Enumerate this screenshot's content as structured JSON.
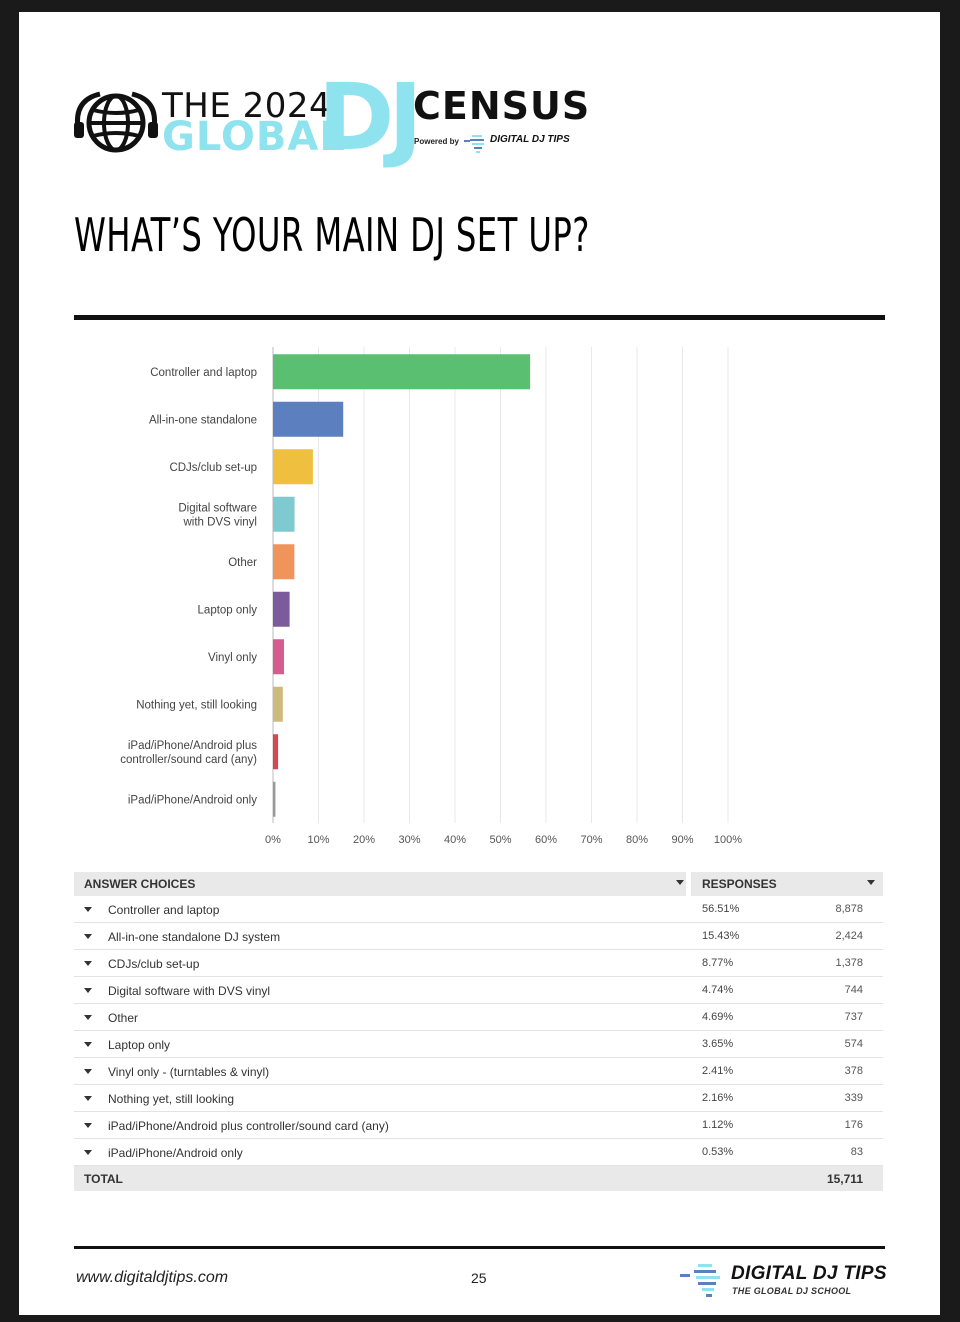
{
  "logo": {
    "the_year": "THE 2024",
    "global": "GLOBAL",
    "dj": "DJ",
    "census": "CENSUS",
    "powered_by": "Powered by",
    "brand_small": "DIGITAL DJ TIPS",
    "accent_color": "#8fe3ee"
  },
  "page_title": "WHAT’S YOUR MAIN DJ SET UP?",
  "chart_data": {
    "type": "bar",
    "orientation": "horizontal",
    "categories": [
      "Controller and laptop",
      "All-in-one standalone",
      "CDJs/club set-up",
      "Digital software with DVS vinyl",
      "Other",
      "Laptop only",
      "Vinyl only",
      "Nothing yet, still looking",
      "iPad/iPhone/Android plus controller/sound card (any)",
      "iPad/iPhone/Android only"
    ],
    "category_lines": [
      [
        "Controller and laptop"
      ],
      [
        "All-in-one standalone"
      ],
      [
        "CDJs/club set-up"
      ],
      [
        "Digital software",
        "with DVS vinyl"
      ],
      [
        "Other"
      ],
      [
        "Laptop only"
      ],
      [
        "Vinyl only"
      ],
      [
        "Nothing yet, still looking"
      ],
      [
        "iPad/iPhone/Android plus",
        "controller/sound card (any)"
      ],
      [
        "iPad/iPhone/Android only"
      ]
    ],
    "values": [
      56.51,
      15.43,
      8.77,
      4.74,
      4.69,
      3.65,
      2.41,
      2.16,
      1.12,
      0.53
    ],
    "colors": [
      "#5bbf72",
      "#5b7fbf",
      "#efc03f",
      "#7ecad0",
      "#ef945a",
      "#7b5b9c",
      "#d55c8c",
      "#cdbb7c",
      "#d8474f",
      "#999999"
    ],
    "xlim": [
      0,
      100
    ],
    "x_ticks": [
      "0%",
      "10%",
      "20%",
      "30%",
      "40%",
      "50%",
      "60%",
      "70%",
      "80%",
      "90%",
      "100%"
    ],
    "grid": true
  },
  "table": {
    "col_answers": "ANSWER CHOICES",
    "col_responses": "RESPONSES",
    "rows": [
      {
        "label": "Controller and laptop",
        "pct": "56.51%",
        "count": "8,878"
      },
      {
        "label": "All-in-one standalone DJ system",
        "pct": "15.43%",
        "count": "2,424"
      },
      {
        "label": "CDJs/club set-up",
        "pct": "8.77%",
        "count": "1,378"
      },
      {
        "label": "Digital software with DVS vinyl",
        "pct": "4.74%",
        "count": "744"
      },
      {
        "label": "Other",
        "pct": "4.69%",
        "count": "737"
      },
      {
        "label": "Laptop only",
        "pct": "3.65%",
        "count": "574"
      },
      {
        "label": "Vinyl only - (turntables & vinyl)",
        "pct": "2.41%",
        "count": "378"
      },
      {
        "label": "Nothing yet, still looking",
        "pct": "2.16%",
        "count": "339"
      },
      {
        "label": "iPad/iPhone/Android plus controller/sound card (any)",
        "pct": "1.12%",
        "count": "176"
      },
      {
        "label": "iPad/iPhone/Android only",
        "pct": "0.53%",
        "count": "83"
      }
    ],
    "total_label": "TOTAL",
    "total_value": "15,711"
  },
  "footer": {
    "url": "www.digitaldjtips.com",
    "page_number": "25",
    "brand": "DIGITAL DJ TIPS",
    "tagline": "THE GLOBAL DJ SCHOOL"
  }
}
